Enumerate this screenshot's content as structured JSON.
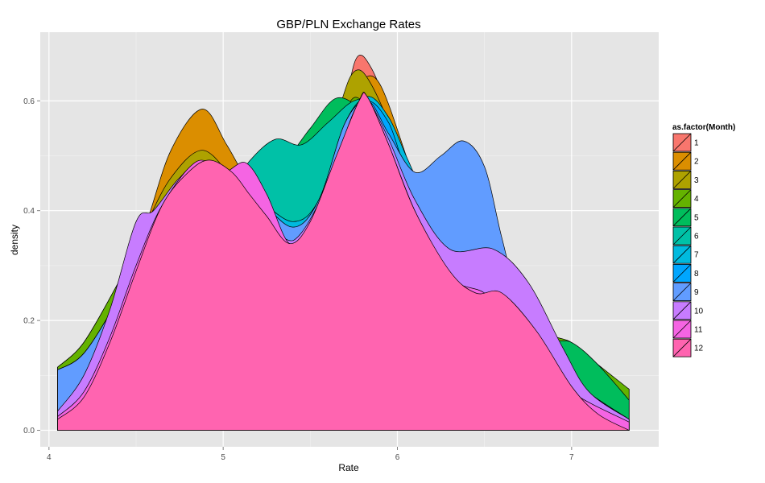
{
  "chart_data": {
    "type": "area",
    "title": "GBP/PLN Exchange Rates",
    "xlabel": "Rate",
    "ylabel": "density",
    "xlim": [
      3.95,
      7.5
    ],
    "ylim": [
      -0.03,
      0.725
    ],
    "x_ticks": [
      4,
      5,
      6,
      7
    ],
    "y_ticks": [
      0.0,
      0.2,
      0.4,
      0.6
    ],
    "x_tick_labels": [
      "4",
      "5",
      "6",
      "7"
    ],
    "y_tick_labels": [
      "0.0",
      "0.2",
      "0.4",
      "0.6"
    ],
    "grid": true,
    "legend": {
      "title": "as.factor(Month)",
      "position": "right"
    },
    "series": [
      {
        "name": "1",
        "color": "#F8766D",
        "points": [
          [
            4.05,
            0.115
          ],
          [
            4.2,
            0.16
          ],
          [
            4.4,
            0.27
          ],
          [
            4.55,
            0.36
          ],
          [
            4.7,
            0.45
          ],
          [
            4.88,
            0.51
          ],
          [
            5.05,
            0.45
          ],
          [
            5.2,
            0.39
          ],
          [
            5.4,
            0.36
          ],
          [
            5.55,
            0.42
          ],
          [
            5.7,
            0.6
          ],
          [
            5.77,
            0.68
          ],
          [
            5.85,
            0.66
          ],
          [
            5.95,
            0.58
          ],
          [
            6.05,
            0.47
          ],
          [
            6.2,
            0.33
          ],
          [
            6.4,
            0.25
          ],
          [
            6.6,
            0.26
          ],
          [
            6.8,
            0.17
          ],
          [
            7.0,
            0.14
          ],
          [
            7.15,
            0.11
          ],
          [
            7.33,
            0.075
          ]
        ]
      },
      {
        "name": "2",
        "color": "#DB8E00",
        "points": [
          [
            4.05,
            0.115
          ],
          [
            4.2,
            0.16
          ],
          [
            4.4,
            0.27
          ],
          [
            4.55,
            0.37
          ],
          [
            4.7,
            0.51
          ],
          [
            4.88,
            0.585
          ],
          [
            5.02,
            0.52
          ],
          [
            5.15,
            0.45
          ],
          [
            5.3,
            0.4
          ],
          [
            5.45,
            0.37
          ],
          [
            5.6,
            0.45
          ],
          [
            5.72,
            0.6
          ],
          [
            5.8,
            0.64
          ],
          [
            5.9,
            0.63
          ],
          [
            6.05,
            0.5
          ],
          [
            6.2,
            0.35
          ],
          [
            6.4,
            0.26
          ],
          [
            6.6,
            0.26
          ],
          [
            6.8,
            0.17
          ],
          [
            7.0,
            0.14
          ],
          [
            7.15,
            0.11
          ],
          [
            7.33,
            0.075
          ]
        ]
      },
      {
        "name": "3",
        "color": "#AEA200",
        "points": [
          [
            4.05,
            0.115
          ],
          [
            4.2,
            0.16
          ],
          [
            4.4,
            0.27
          ],
          [
            4.55,
            0.37
          ],
          [
            4.7,
            0.46
          ],
          [
            4.88,
            0.51
          ],
          [
            5.05,
            0.46
          ],
          [
            5.2,
            0.4
          ],
          [
            5.4,
            0.37
          ],
          [
            5.55,
            0.44
          ],
          [
            5.68,
            0.6
          ],
          [
            5.76,
            0.655
          ],
          [
            5.85,
            0.63
          ],
          [
            6.0,
            0.52
          ],
          [
            6.15,
            0.38
          ],
          [
            6.35,
            0.28
          ],
          [
            6.6,
            0.26
          ],
          [
            6.8,
            0.17
          ],
          [
            7.0,
            0.14
          ],
          [
            7.15,
            0.11
          ],
          [
            7.33,
            0.075
          ]
        ]
      },
      {
        "name": "4",
        "color": "#64B200",
        "points": [
          [
            4.05,
            0.115
          ],
          [
            4.2,
            0.16
          ],
          [
            4.4,
            0.27
          ],
          [
            4.55,
            0.36
          ],
          [
            4.7,
            0.44
          ],
          [
            4.88,
            0.49
          ],
          [
            5.05,
            0.44
          ],
          [
            5.2,
            0.39
          ],
          [
            5.4,
            0.36
          ],
          [
            5.55,
            0.41
          ],
          [
            5.7,
            0.58
          ],
          [
            5.8,
            0.6
          ],
          [
            5.95,
            0.52
          ],
          [
            6.1,
            0.4
          ],
          [
            6.3,
            0.3
          ],
          [
            6.5,
            0.26
          ],
          [
            6.65,
            0.25
          ],
          [
            6.85,
            0.18
          ],
          [
            7.0,
            0.16
          ],
          [
            7.15,
            0.12
          ],
          [
            7.33,
            0.075
          ]
        ]
      },
      {
        "name": "5",
        "color": "#00BD5C",
        "points": [
          [
            4.05,
            0.11
          ],
          [
            4.2,
            0.14
          ],
          [
            4.4,
            0.24
          ],
          [
            4.55,
            0.33
          ],
          [
            4.7,
            0.43
          ],
          [
            4.88,
            0.49
          ],
          [
            5.05,
            0.44
          ],
          [
            5.2,
            0.47
          ],
          [
            5.35,
            0.49
          ],
          [
            5.5,
            0.55
          ],
          [
            5.65,
            0.605
          ],
          [
            5.8,
            0.58
          ],
          [
            5.95,
            0.52
          ],
          [
            6.1,
            0.4
          ],
          [
            6.3,
            0.3
          ],
          [
            6.5,
            0.26
          ],
          [
            6.65,
            0.25
          ],
          [
            6.85,
            0.17
          ],
          [
            7.0,
            0.16
          ],
          [
            7.15,
            0.12
          ],
          [
            7.33,
            0.055
          ]
        ]
      },
      {
        "name": "6",
        "color": "#00C1A7",
        "points": [
          [
            4.05,
            0.11
          ],
          [
            4.2,
            0.14
          ],
          [
            4.4,
            0.24
          ],
          [
            4.55,
            0.33
          ],
          [
            4.7,
            0.43
          ],
          [
            4.88,
            0.49
          ],
          [
            5.05,
            0.44
          ],
          [
            5.15,
            0.49
          ],
          [
            5.3,
            0.53
          ],
          [
            5.45,
            0.52
          ],
          [
            5.6,
            0.56
          ],
          [
            5.75,
            0.6
          ],
          [
            5.85,
            0.59
          ],
          [
            6.0,
            0.5
          ],
          [
            6.15,
            0.38
          ],
          [
            6.35,
            0.3
          ],
          [
            6.55,
            0.26
          ],
          [
            6.7,
            0.24
          ],
          [
            6.9,
            0.14
          ],
          [
            7.05,
            0.08
          ],
          [
            7.33,
            0.02
          ]
        ]
      },
      {
        "name": "7",
        "color": "#00BADE",
        "points": [
          [
            4.05,
            0.11
          ],
          [
            4.2,
            0.14
          ],
          [
            4.4,
            0.24
          ],
          [
            4.55,
            0.33
          ],
          [
            4.7,
            0.43
          ],
          [
            4.88,
            0.49
          ],
          [
            5.05,
            0.44
          ],
          [
            5.2,
            0.42
          ],
          [
            5.4,
            0.38
          ],
          [
            5.55,
            0.42
          ],
          [
            5.7,
            0.56
          ],
          [
            5.83,
            0.608
          ],
          [
            5.95,
            0.57
          ],
          [
            6.05,
            0.5
          ],
          [
            6.15,
            0.43
          ],
          [
            6.35,
            0.3
          ],
          [
            6.55,
            0.26
          ],
          [
            6.7,
            0.24
          ],
          [
            6.9,
            0.14
          ],
          [
            7.05,
            0.08
          ],
          [
            7.33,
            0.02
          ]
        ]
      },
      {
        "name": "8",
        "color": "#00A6FF",
        "points": [
          [
            4.05,
            0.11
          ],
          [
            4.2,
            0.14
          ],
          [
            4.4,
            0.24
          ],
          [
            4.55,
            0.33
          ],
          [
            4.7,
            0.43
          ],
          [
            4.88,
            0.49
          ],
          [
            5.05,
            0.44
          ],
          [
            5.2,
            0.42
          ],
          [
            5.4,
            0.37
          ],
          [
            5.55,
            0.42
          ],
          [
            5.7,
            0.56
          ],
          [
            5.83,
            0.6
          ],
          [
            5.95,
            0.56
          ],
          [
            6.05,
            0.48
          ],
          [
            6.2,
            0.45
          ],
          [
            6.35,
            0.32
          ],
          [
            6.55,
            0.26
          ],
          [
            6.7,
            0.24
          ],
          [
            6.9,
            0.14
          ],
          [
            7.05,
            0.08
          ],
          [
            7.33,
            0.02
          ]
        ]
      },
      {
        "name": "9",
        "color": "#619CFF",
        "points": [
          [
            4.05,
            0.11
          ],
          [
            4.2,
            0.14
          ],
          [
            4.4,
            0.24
          ],
          [
            4.55,
            0.33
          ],
          [
            4.7,
            0.43
          ],
          [
            4.88,
            0.49
          ],
          [
            5.05,
            0.44
          ],
          [
            5.2,
            0.42
          ],
          [
            5.4,
            0.37
          ],
          [
            5.55,
            0.42
          ],
          [
            5.7,
            0.56
          ],
          [
            5.83,
            0.6
          ],
          [
            5.95,
            0.54
          ],
          [
            6.1,
            0.47
          ],
          [
            6.25,
            0.5
          ],
          [
            6.38,
            0.527
          ],
          [
            6.5,
            0.48
          ],
          [
            6.6,
            0.35
          ],
          [
            6.7,
            0.24
          ],
          [
            6.9,
            0.14
          ],
          [
            7.05,
            0.08
          ],
          [
            7.33,
            0.02
          ]
        ]
      },
      {
        "name": "10",
        "color": "#C77CFF",
        "points": [
          [
            4.05,
            0.035
          ],
          [
            4.2,
            0.1
          ],
          [
            4.35,
            0.22
          ],
          [
            4.5,
            0.38
          ],
          [
            4.6,
            0.4
          ],
          [
            4.75,
            0.46
          ],
          [
            4.9,
            0.49
          ],
          [
            5.05,
            0.44
          ],
          [
            5.2,
            0.41
          ],
          [
            5.35,
            0.35
          ],
          [
            5.45,
            0.36
          ],
          [
            5.6,
            0.45
          ],
          [
            5.75,
            0.58
          ],
          [
            5.83,
            0.6
          ],
          [
            5.95,
            0.53
          ],
          [
            6.1,
            0.42
          ],
          [
            6.3,
            0.33
          ],
          [
            6.55,
            0.33
          ],
          [
            6.75,
            0.27
          ],
          [
            6.95,
            0.15
          ],
          [
            7.1,
            0.07
          ],
          [
            7.33,
            0.02
          ]
        ]
      },
      {
        "name": "11",
        "color": "#F564E3",
        "points": [
          [
            4.05,
            0.025
          ],
          [
            4.2,
            0.07
          ],
          [
            4.35,
            0.17
          ],
          [
            4.5,
            0.3
          ],
          [
            4.65,
            0.41
          ],
          [
            4.85,
            0.49
          ],
          [
            5.0,
            0.47
          ],
          [
            5.13,
            0.487
          ],
          [
            5.25,
            0.43
          ],
          [
            5.38,
            0.34
          ],
          [
            5.5,
            0.37
          ],
          [
            5.65,
            0.48
          ],
          [
            5.78,
            0.6
          ],
          [
            5.83,
            0.606
          ],
          [
            5.95,
            0.52
          ],
          [
            6.1,
            0.4
          ],
          [
            6.3,
            0.28
          ],
          [
            6.5,
            0.25
          ],
          [
            6.65,
            0.2
          ],
          [
            6.85,
            0.13
          ],
          [
            7.0,
            0.07
          ],
          [
            7.33,
            0.015
          ]
        ]
      },
      {
        "name": "12",
        "color": "#FF64B0",
        "points": [
          [
            4.05,
            0.02
          ],
          [
            4.2,
            0.06
          ],
          [
            4.35,
            0.16
          ],
          [
            4.5,
            0.29
          ],
          [
            4.65,
            0.41
          ],
          [
            4.8,
            0.47
          ],
          [
            4.92,
            0.492
          ],
          [
            5.05,
            0.47
          ],
          [
            5.15,
            0.43
          ],
          [
            5.25,
            0.39
          ],
          [
            5.38,
            0.34
          ],
          [
            5.5,
            0.38
          ],
          [
            5.65,
            0.5
          ],
          [
            5.78,
            0.6
          ],
          [
            5.83,
            0.606
          ],
          [
            5.95,
            0.52
          ],
          [
            6.1,
            0.4
          ],
          [
            6.3,
            0.29
          ],
          [
            6.45,
            0.25
          ],
          [
            6.6,
            0.25
          ],
          [
            6.8,
            0.18
          ],
          [
            7.0,
            0.08
          ],
          [
            7.15,
            0.03
          ],
          [
            7.33,
            0.0
          ]
        ]
      }
    ]
  }
}
